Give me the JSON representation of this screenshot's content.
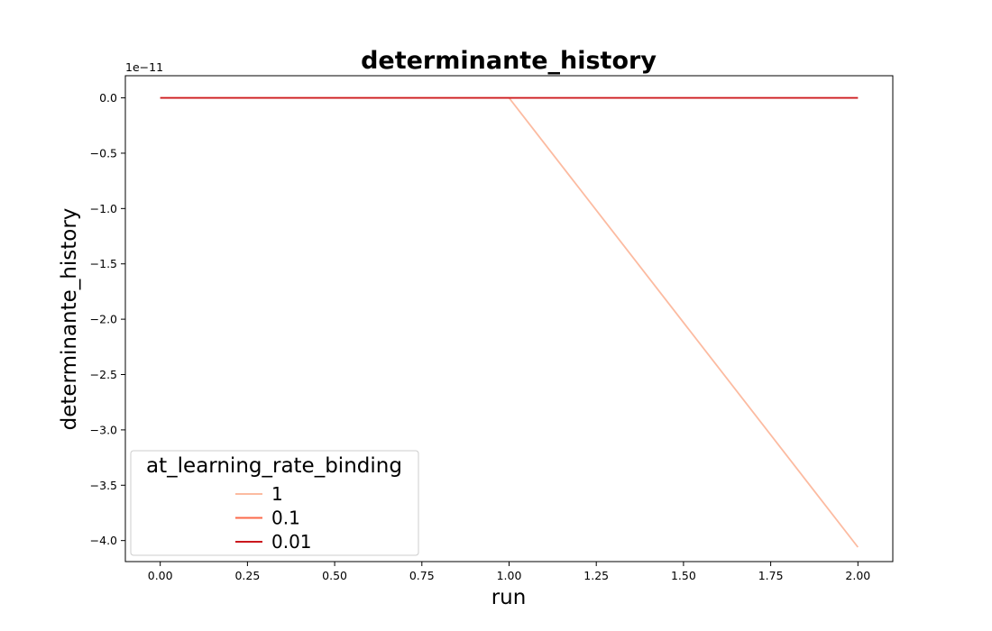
{
  "chart_data": {
    "type": "line",
    "title": "determinante_history",
    "xlabel": "run",
    "ylabel": "determinante_history",
    "y_offset_label": "1e−11",
    "xlim": [
      -0.1,
      2.1
    ],
    "ylim": [
      -4.19,
      0.2
    ],
    "x_ticks": [
      0.0,
      0.25,
      0.5,
      0.75,
      1.0,
      1.25,
      1.5,
      1.75,
      2.0
    ],
    "x_tick_labels": [
      "0.00",
      "0.25",
      "0.50",
      "0.75",
      "1.00",
      "1.25",
      "1.50",
      "1.75",
      "2.00"
    ],
    "y_ticks": [
      0.0,
      -0.5,
      -1.0,
      -1.5,
      -2.0,
      -2.5,
      -3.0,
      -3.5,
      -4.0
    ],
    "y_tick_labels": [
      "0.0",
      "−0.5",
      "−1.0",
      "−1.5",
      "−2.0",
      "−2.5",
      "−3.0",
      "−3.5",
      "−4.0"
    ],
    "grid": false,
    "legend": {
      "title": "at_learning_rate_binding",
      "placement": "lower-left"
    },
    "series": [
      {
        "name": "1",
        "color": "#fcbba1",
        "x": [
          0,
          1,
          2
        ],
        "y": [
          0.0,
          0.0,
          -4.06
        ]
      },
      {
        "name": "0.1",
        "color": "#fb6a4a",
        "x": [
          0,
          1,
          2
        ],
        "y": [
          0.0,
          0.0,
          0.0
        ]
      },
      {
        "name": "0.01",
        "color": "#cb181d",
        "x": [
          0,
          1,
          2
        ],
        "y": [
          0.0,
          0.0,
          0.0
        ]
      }
    ]
  }
}
